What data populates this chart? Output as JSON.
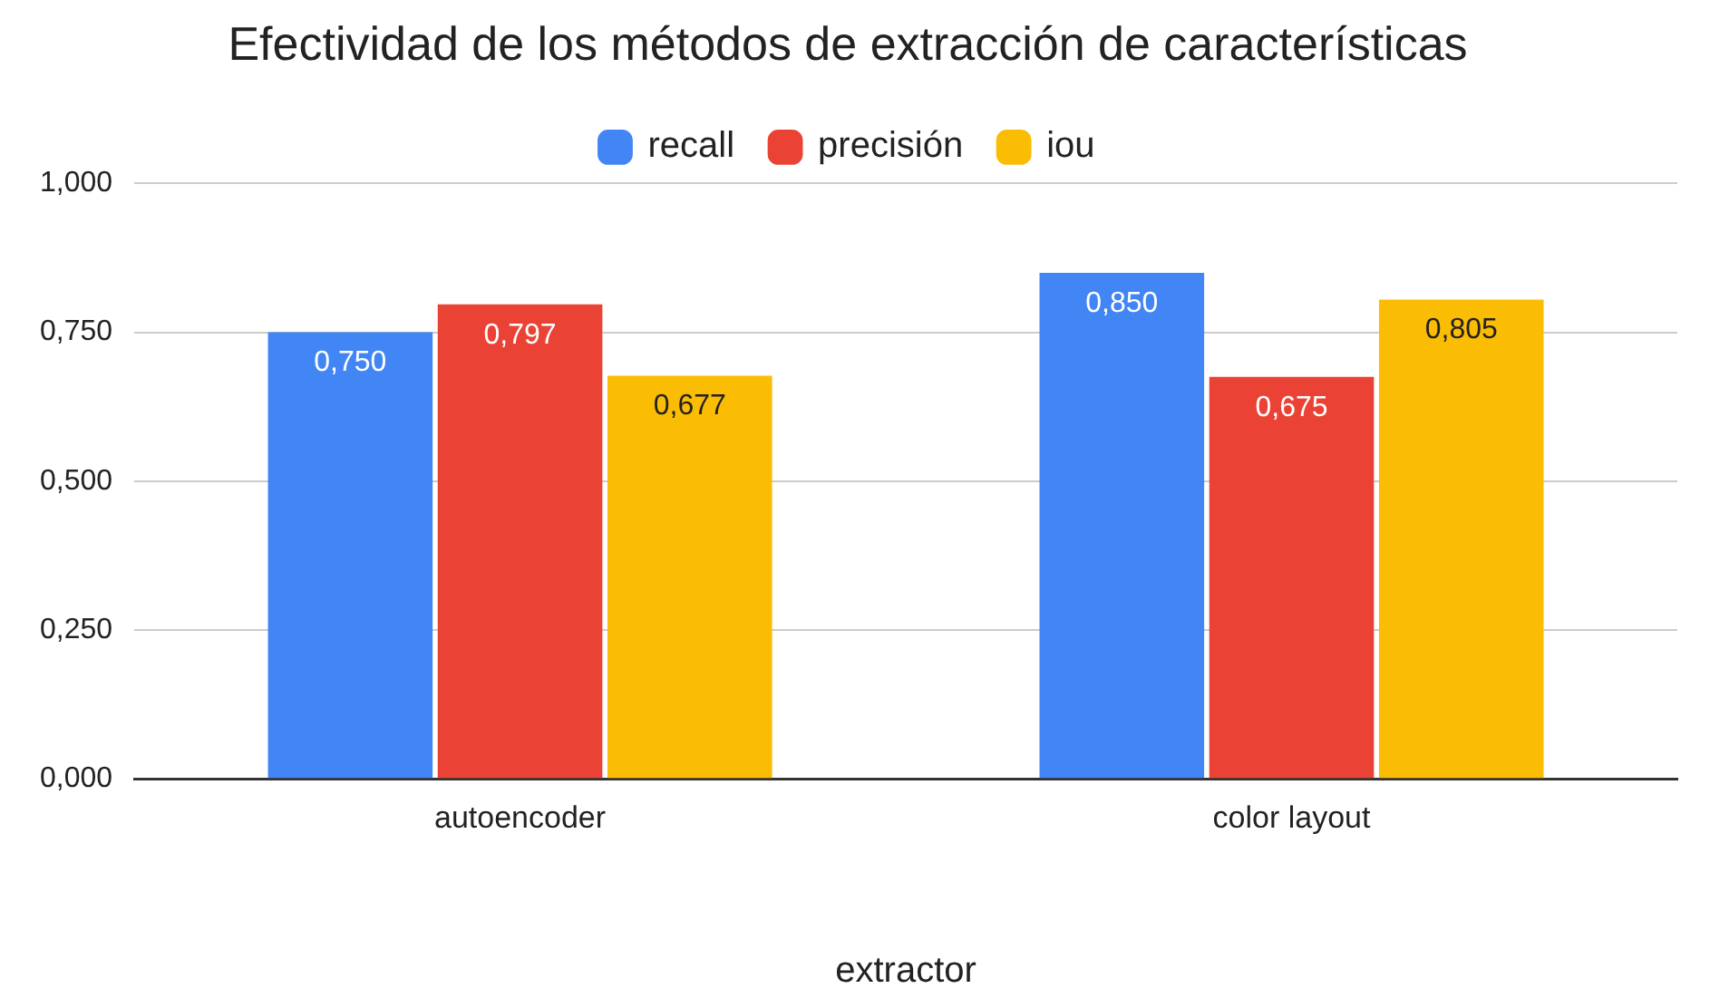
{
  "chart_data": {
    "type": "bar",
    "title": "Efectividad de los métodos de extracción de características",
    "xlabel": "extractor",
    "categories": [
      "autoencoder",
      "color layout"
    ],
    "series": [
      {
        "name": "recall",
        "color": "#4285f4",
        "values": [
          0.75,
          0.85
        ],
        "value_labels": [
          "0,750",
          "0,850"
        ]
      },
      {
        "name": "precisión",
        "color": "#ea4335",
        "values": [
          0.797,
          0.675
        ],
        "value_labels": [
          "0,797",
          "0,675"
        ]
      },
      {
        "name": "iou",
        "color": "#fbbc04",
        "values": [
          0.677,
          0.805
        ],
        "value_labels": [
          "0,677",
          "0,805"
        ]
      }
    ],
    "ylim": [
      0,
      1
    ],
    "yticks": [
      {
        "value": 0,
        "label": "0,000"
      },
      {
        "value": 0.25,
        "label": "0,250"
      },
      {
        "value": 0.5,
        "label": "0,500"
      },
      {
        "value": 0.75,
        "label": "0,750"
      },
      {
        "value": 1,
        "label": "1,000"
      }
    ],
    "grid": "y",
    "legend": "top"
  }
}
